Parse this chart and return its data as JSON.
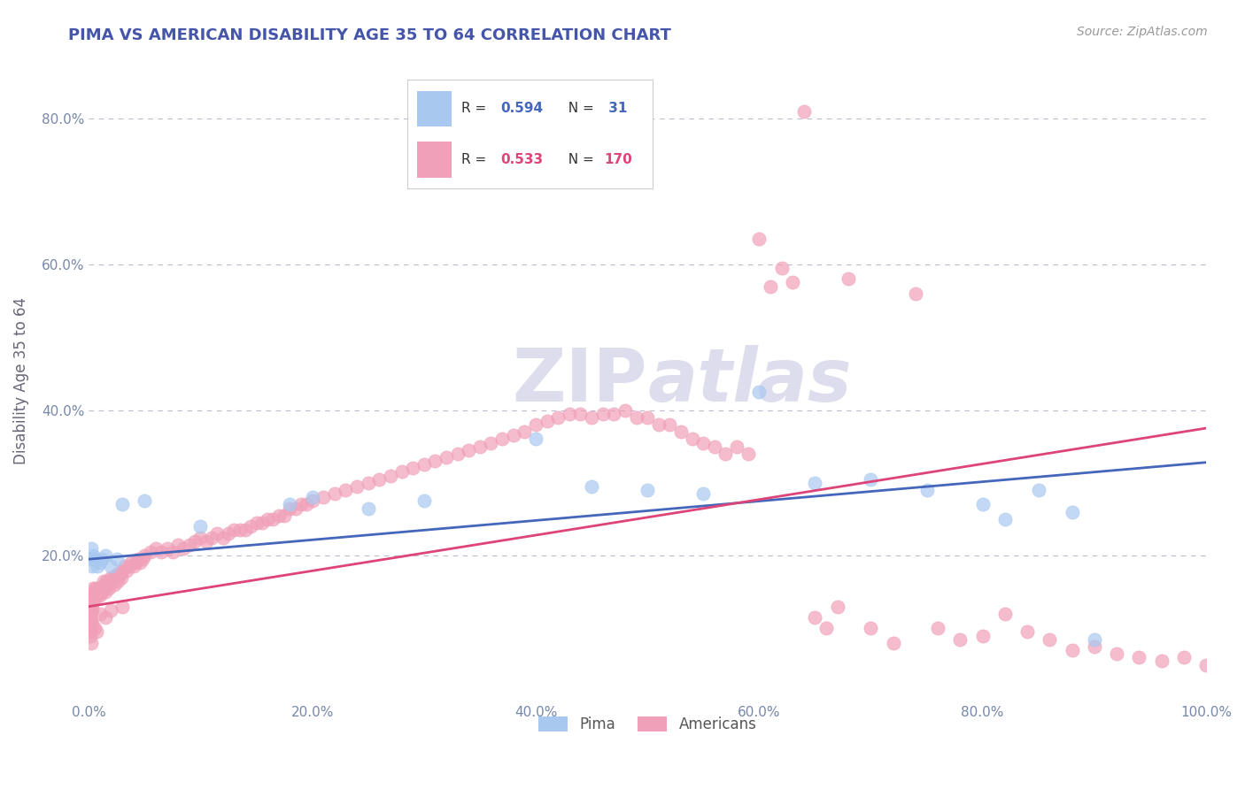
{
  "title": "PIMA VS AMERICAN DISABILITY AGE 35 TO 64 CORRELATION CHART",
  "source": "Source: ZipAtlas.com",
  "ylabel": "Disability Age 35 to 64",
  "xlim": [
    0.0,
    1.0
  ],
  "ylim": [
    0.0,
    0.88
  ],
  "xtick_labels": [
    "0.0%",
    "20.0%",
    "40.0%",
    "60.0%",
    "80.0%",
    "100.0%"
  ],
  "xtick_values": [
    0.0,
    0.2,
    0.4,
    0.6,
    0.8,
    1.0
  ],
  "ytick_labels": [
    "20.0%",
    "40.0%",
    "60.0%",
    "80.0%"
  ],
  "ytick_values": [
    0.2,
    0.4,
    0.6,
    0.8
  ],
  "blue_color": "#A8C8F0",
  "pink_color": "#F0A0B8",
  "blue_line_color": "#4466BB",
  "pink_line_color": "#DD4477",
  "title_color": "#4455AA",
  "grid_color": "#BBBBCC",
  "background_color": "#FFFFFF",
  "watermark_color": "#DDDDEE",
  "blue_r": 0.594,
  "blue_n": 31,
  "pink_r": 0.533,
  "pink_n": 170,
  "blue_line_x0": 0.0,
  "blue_line_y0": 0.195,
  "blue_line_x1": 1.0,
  "blue_line_y1": 0.328,
  "pink_line_x0": 0.0,
  "pink_line_y0": 0.13,
  "pink_line_x1": 1.0,
  "pink_line_y1": 0.375,
  "blue_scatter_x": [
    0.001,
    0.002,
    0.003,
    0.004,
    0.005,
    0.008,
    0.01,
    0.012,
    0.015,
    0.02,
    0.025,
    0.03,
    0.05,
    0.1,
    0.18,
    0.2,
    0.25,
    0.3,
    0.4,
    0.45,
    0.5,
    0.55,
    0.6,
    0.65,
    0.7,
    0.75,
    0.8,
    0.82,
    0.85,
    0.88,
    0.9
  ],
  "blue_scatter_y": [
    0.195,
    0.21,
    0.185,
    0.2,
    0.195,
    0.185,
    0.19,
    0.195,
    0.2,
    0.185,
    0.195,
    0.27,
    0.275,
    0.24,
    0.27,
    0.28,
    0.265,
    0.275,
    0.36,
    0.295,
    0.29,
    0.285,
    0.425,
    0.3,
    0.305,
    0.29,
    0.27,
    0.25,
    0.29,
    0.26,
    0.085
  ],
  "pink_scatter_x": [
    0.001,
    0.001,
    0.001,
    0.001,
    0.001,
    0.001,
    0.001,
    0.001,
    0.001,
    0.001,
    0.002,
    0.002,
    0.002,
    0.002,
    0.002,
    0.002,
    0.002,
    0.003,
    0.003,
    0.003,
    0.004,
    0.004,
    0.005,
    0.005,
    0.005,
    0.006,
    0.006,
    0.007,
    0.008,
    0.008,
    0.009,
    0.01,
    0.01,
    0.011,
    0.012,
    0.013,
    0.014,
    0.015,
    0.015,
    0.016,
    0.017,
    0.018,
    0.019,
    0.02,
    0.021,
    0.022,
    0.023,
    0.024,
    0.025,
    0.026,
    0.027,
    0.028,
    0.029,
    0.03,
    0.032,
    0.034,
    0.036,
    0.038,
    0.04,
    0.042,
    0.044,
    0.046,
    0.048,
    0.05,
    0.055,
    0.06,
    0.065,
    0.07,
    0.075,
    0.08,
    0.085,
    0.09,
    0.095,
    0.1,
    0.105,
    0.11,
    0.115,
    0.12,
    0.125,
    0.13,
    0.135,
    0.14,
    0.145,
    0.15,
    0.155,
    0.16,
    0.165,
    0.17,
    0.175,
    0.18,
    0.185,
    0.19,
    0.195,
    0.2,
    0.21,
    0.22,
    0.23,
    0.24,
    0.25,
    0.26,
    0.27,
    0.28,
    0.29,
    0.3,
    0.31,
    0.32,
    0.33,
    0.34,
    0.35,
    0.36,
    0.37,
    0.38,
    0.39,
    0.4,
    0.41,
    0.42,
    0.43,
    0.44,
    0.45,
    0.46,
    0.47,
    0.48,
    0.49,
    0.5,
    0.51,
    0.52,
    0.53,
    0.54,
    0.55,
    0.56,
    0.57,
    0.58,
    0.59,
    0.6,
    0.61,
    0.62,
    0.63,
    0.64,
    0.65,
    0.66,
    0.67,
    0.68,
    0.7,
    0.72,
    0.74,
    0.76,
    0.78,
    0.8,
    0.82,
    0.84,
    0.86,
    0.88,
    0.9,
    0.92,
    0.94,
    0.96,
    0.98,
    1.0,
    0.001,
    0.001,
    0.002,
    0.003,
    0.005,
    0.007,
    0.01,
    0.015,
    0.02,
    0.03,
    0.001,
    0.002
  ],
  "pink_scatter_y": [
    0.13,
    0.14,
    0.12,
    0.135,
    0.125,
    0.145,
    0.13,
    0.135,
    0.12,
    0.11,
    0.14,
    0.13,
    0.145,
    0.135,
    0.125,
    0.14,
    0.13,
    0.145,
    0.135,
    0.125,
    0.14,
    0.155,
    0.145,
    0.15,
    0.14,
    0.155,
    0.145,
    0.15,
    0.145,
    0.155,
    0.15,
    0.155,
    0.145,
    0.155,
    0.15,
    0.165,
    0.16,
    0.16,
    0.15,
    0.165,
    0.16,
    0.155,
    0.165,
    0.17,
    0.165,
    0.17,
    0.16,
    0.17,
    0.175,
    0.165,
    0.175,
    0.175,
    0.17,
    0.18,
    0.185,
    0.18,
    0.185,
    0.19,
    0.185,
    0.19,
    0.195,
    0.19,
    0.195,
    0.2,
    0.205,
    0.21,
    0.205,
    0.21,
    0.205,
    0.215,
    0.21,
    0.215,
    0.22,
    0.225,
    0.22,
    0.225,
    0.23,
    0.225,
    0.23,
    0.235,
    0.235,
    0.235,
    0.24,
    0.245,
    0.245,
    0.25,
    0.25,
    0.255,
    0.255,
    0.265,
    0.265,
    0.27,
    0.27,
    0.275,
    0.28,
    0.285,
    0.29,
    0.295,
    0.3,
    0.305,
    0.31,
    0.315,
    0.32,
    0.325,
    0.33,
    0.335,
    0.34,
    0.345,
    0.35,
    0.355,
    0.36,
    0.365,
    0.37,
    0.38,
    0.385,
    0.39,
    0.395,
    0.395,
    0.39,
    0.395,
    0.395,
    0.4,
    0.39,
    0.39,
    0.38,
    0.38,
    0.37,
    0.36,
    0.355,
    0.35,
    0.34,
    0.35,
    0.34,
    0.635,
    0.57,
    0.595,
    0.575,
    0.81,
    0.115,
    0.1,
    0.13,
    0.58,
    0.1,
    0.08,
    0.56,
    0.1,
    0.085,
    0.09,
    0.12,
    0.095,
    0.085,
    0.07,
    0.075,
    0.065,
    0.06,
    0.055,
    0.06,
    0.05,
    0.1,
    0.095,
    0.11,
    0.105,
    0.1,
    0.095,
    0.12,
    0.115,
    0.125,
    0.13,
    0.09,
    0.08
  ]
}
